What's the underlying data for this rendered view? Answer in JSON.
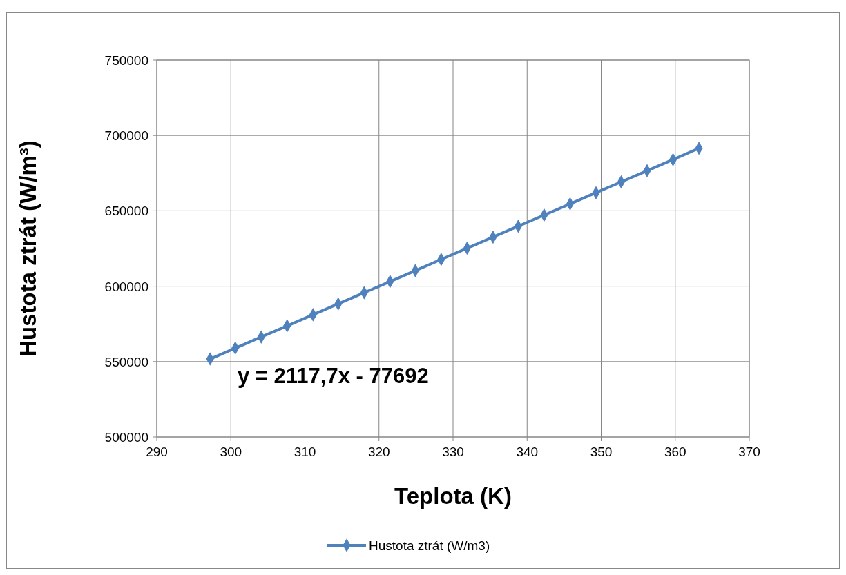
{
  "chart_data": {
    "type": "line",
    "xlabel": "Teplota (K)",
    "ylabel": "Hustota ztrát (W/m³)",
    "series": [
      {
        "name": "Hustota ztrát (W/m3)",
        "color": "#4f81bd",
        "x": [
          297.2,
          300.6,
          304.1,
          307.6,
          311.1,
          314.5,
          318.0,
          321.5,
          324.9,
          328.4,
          331.9,
          335.4,
          338.8,
          342.3,
          345.8,
          349.3,
          352.7,
          356.2,
          359.7,
          363.2
        ],
        "values": [
          551700,
          558900,
          566300,
          573700,
          581100,
          588300,
          595700,
          603100,
          610300,
          617800,
          625200,
          632600,
          639800,
          647200,
          654600,
          662000,
          669200,
          676600,
          684000,
          691500
        ]
      }
    ],
    "xlim": [
      290,
      370
    ],
    "xticks": [
      290,
      300,
      310,
      320,
      330,
      340,
      350,
      360,
      370
    ],
    "ylim": [
      500000,
      750000
    ],
    "yticks": [
      500000,
      550000,
      600000,
      650000,
      700000,
      750000
    ],
    "grid": true,
    "legend": "bottom",
    "marker": "diamond",
    "line_style": "solid",
    "annotations": [
      "y = 2117,7x - 77692"
    ]
  }
}
